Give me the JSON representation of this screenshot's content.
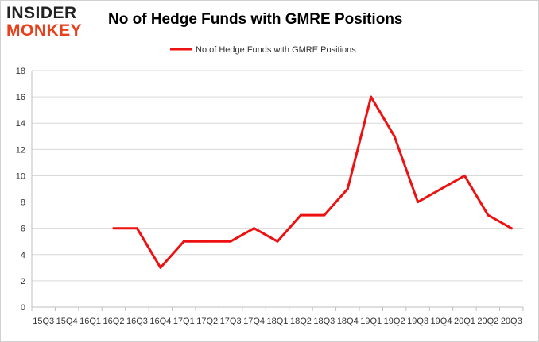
{
  "logo": {
    "line1": "INSIDER",
    "line2": "MONKEY"
  },
  "chart_data": {
    "type": "line",
    "title": "No of Hedge Funds with GMRE Positions",
    "xlabel": "",
    "ylabel": "",
    "categories": [
      "15Q3",
      "15Q4",
      "16Q1",
      "16Q2",
      "16Q3",
      "16Q4",
      "17Q1",
      "17Q2",
      "17Q3",
      "17Q4",
      "18Q1",
      "18Q2",
      "18Q3",
      "18Q4",
      "19Q1",
      "19Q2",
      "19Q3",
      "19Q4",
      "20Q1",
      "20Q2",
      "20Q3"
    ],
    "series": [
      {
        "name": "No of Hedge Funds with GMRE Positions",
        "color": "#ee1111",
        "values": [
          null,
          null,
          null,
          6,
          6,
          3,
          5,
          5,
          5,
          6,
          5,
          7,
          7,
          9,
          16,
          13,
          8,
          9,
          10,
          7,
          6
        ]
      }
    ],
    "ylim": [
      0,
      18
    ],
    "yticks": [
      0,
      2,
      4,
      6,
      8,
      10,
      12,
      14,
      16,
      18
    ],
    "grid": "horizontal",
    "legend": "top-center"
  }
}
